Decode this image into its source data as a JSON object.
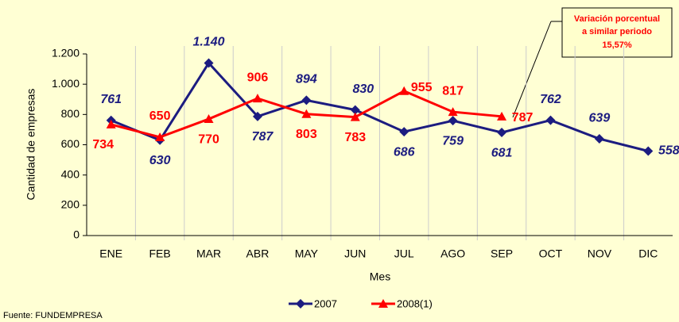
{
  "chart_data": {
    "type": "line",
    "y_label": "Cantidad de empresas",
    "x_label": "Mes",
    "source": "Fuente: FUNDEMPRESA",
    "annotation": [
      "Variación porcentual",
      "a similar periodo",
      "15,57%"
    ],
    "categories": [
      "ENE",
      "FEB",
      "MAR",
      "ABR",
      "MAY",
      "JUN",
      "JUL",
      "AGO",
      "SEP",
      "OCT",
      "NOV",
      "DIC"
    ],
    "series": [
      {
        "name": "2007",
        "color": "#1c1c80",
        "marker": "diamond",
        "values": [
          761,
          630,
          1140,
          787,
          894,
          830,
          686,
          759,
          681,
          762,
          639,
          558
        ],
        "value_labels": [
          "761",
          "630",
          "1.140",
          "787",
          "894",
          "830",
          "686",
          "759",
          "681",
          "762",
          "639",
          "558"
        ]
      },
      {
        "name": "2008(1)",
        "color": "#ff0000",
        "marker": "triangle",
        "values": [
          734,
          650,
          770,
          906,
          803,
          783,
          955,
          817,
          787,
          null,
          null,
          null
        ]
      }
    ],
    "ylim": [
      0,
      1200
    ],
    "yticks": [
      0,
      200,
      400,
      600,
      800,
      {
        "value": 1000,
        "label": "1.000"
      },
      {
        "value": 1200,
        "label": "1.200"
      }
    ]
  }
}
